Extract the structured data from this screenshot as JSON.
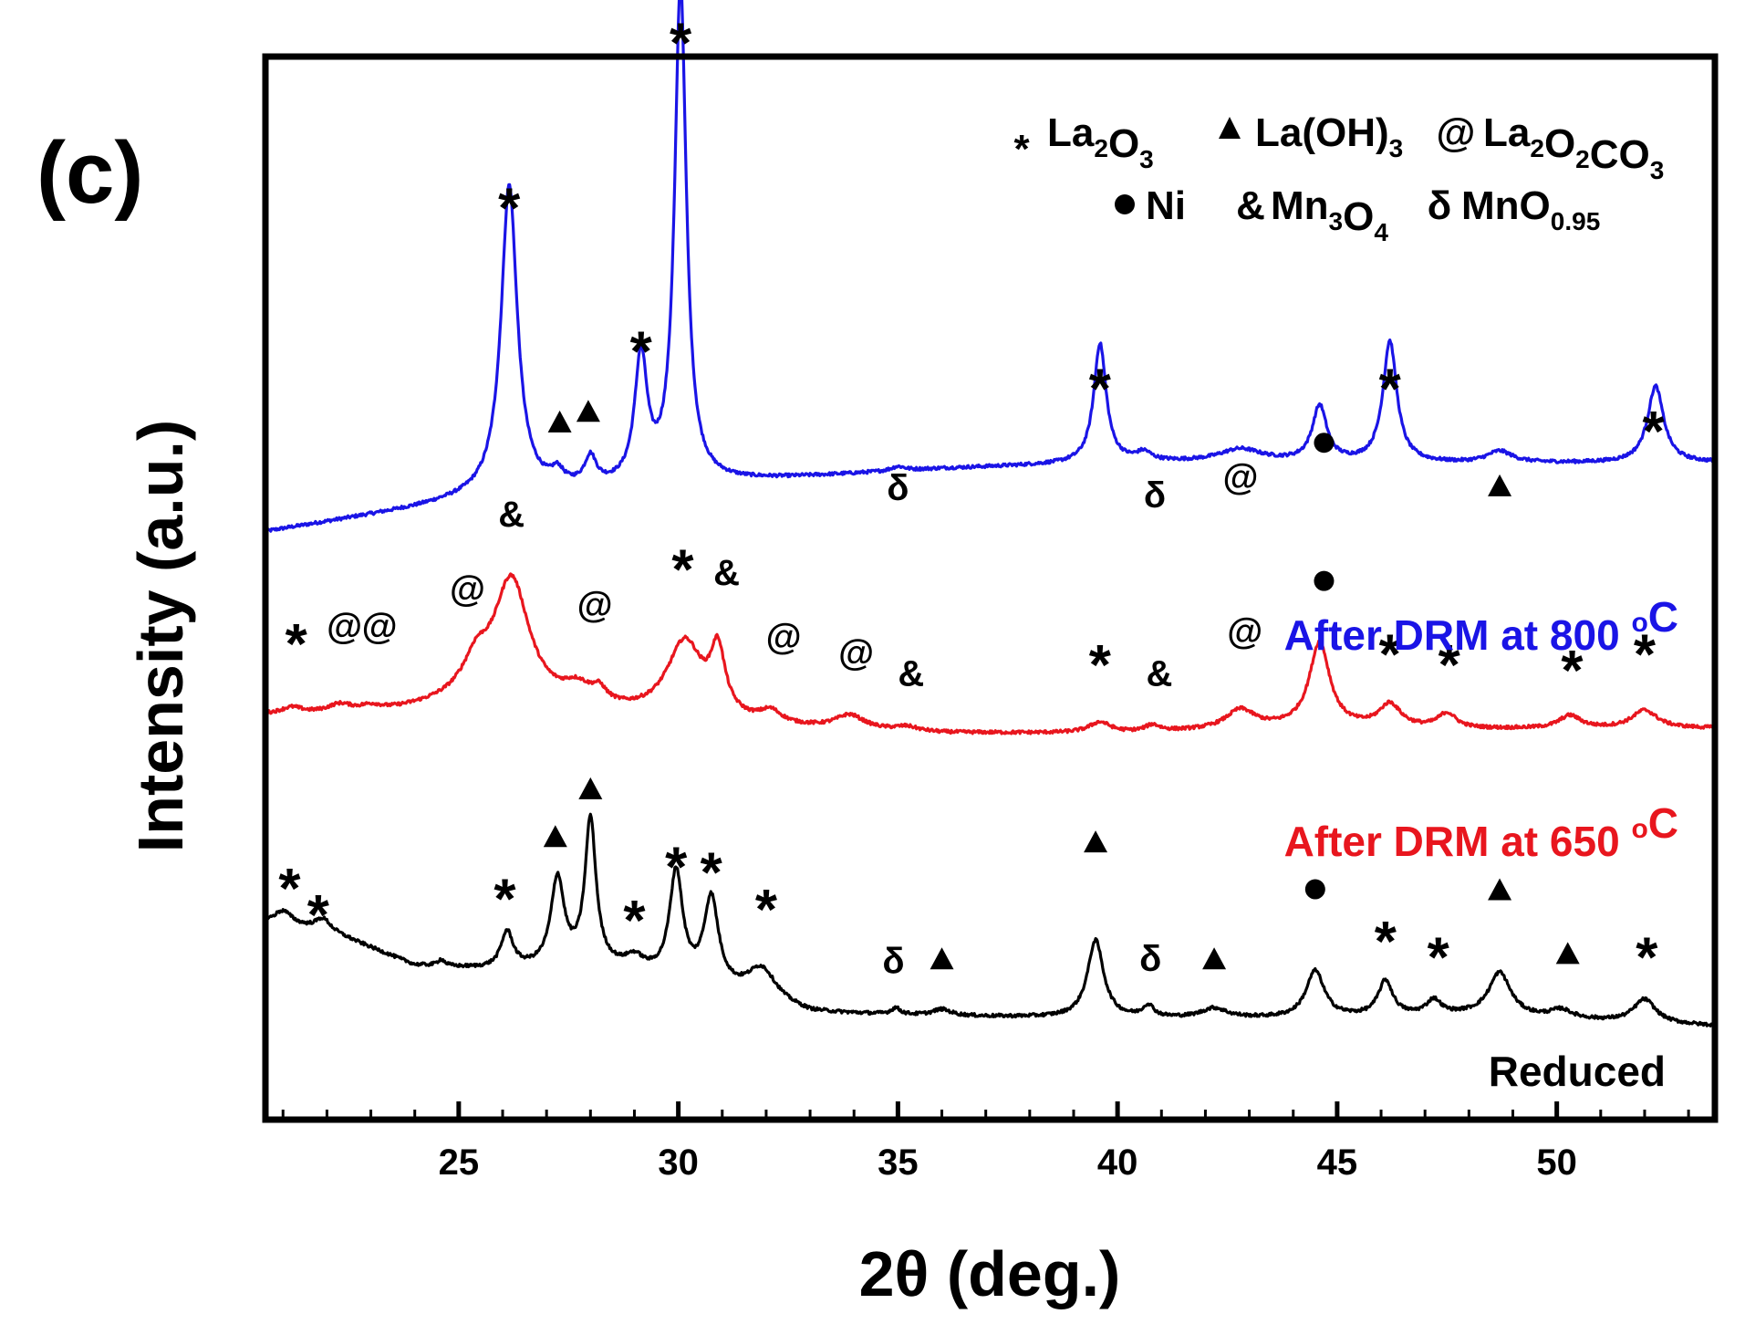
{
  "panel_label": "(c)",
  "chart_data": {
    "type": "line",
    "title": "",
    "xlabel": "2θ (deg.)",
    "ylabel": "Intensity (a.u.)",
    "xlim": [
      20.6,
      53.6
    ],
    "ylim": [
      0,
      1
    ],
    "xticks": [
      25,
      30,
      35,
      40,
      45,
      50
    ],
    "xtick_labels": [
      "25",
      "30",
      "35",
      "40",
      "45",
      "50"
    ],
    "grid": false,
    "legend": {
      "placement": "top-right",
      "entries": [
        {
          "symbol": "*",
          "label": "La2O3",
          "parts": [
            {
              "t": "La"
            },
            {
              "t": "2",
              "sub": true
            },
            {
              "t": "O"
            },
            {
              "t": "3",
              "sub": true
            }
          ]
        },
        {
          "symbol": "▲",
          "label": "La(OH)3",
          "parts": [
            {
              "t": "La(OH)"
            },
            {
              "t": "3",
              "sub": true
            }
          ]
        },
        {
          "symbol": "@",
          "label": "La2O2CO3",
          "parts": [
            {
              "t": "La"
            },
            {
              "t": "2",
              "sub": true
            },
            {
              "t": "O"
            },
            {
              "t": "2",
              "sub": true
            },
            {
              "t": "CO"
            },
            {
              "t": "3",
              "sub": true
            }
          ]
        },
        {
          "symbol": "●",
          "label": "Ni",
          "parts": [
            {
              "t": "Ni"
            }
          ]
        },
        {
          "symbol": "&",
          "label": "Mn3O4",
          "parts": [
            {
              "t": "Mn"
            },
            {
              "t": "3",
              "sub": true
            },
            {
              "t": "O"
            },
            {
              "t": "4",
              "sub": true
            }
          ]
        },
        {
          "symbol": "δ",
          "label": "MnO0.95",
          "parts": [
            {
              "t": "MnO"
            },
            {
              "t": "0.95",
              "sub": true
            }
          ]
        }
      ]
    },
    "series": [
      {
        "name": "After DRM at 800 °C",
        "label_parts": [
          {
            "t": "After DRM at 800 "
          },
          {
            "t": "o",
            "sup": true
          },
          {
            "t": "C"
          }
        ],
        "color": "#1a14e6",
        "baseline": [
          [
            20.6,
            0.553
          ],
          [
            24,
            0.575
          ],
          [
            26,
            0.59
          ],
          [
            28,
            0.592
          ],
          [
            32,
            0.602
          ],
          [
            36,
            0.612
          ],
          [
            40,
            0.618
          ],
          [
            44,
            0.618
          ],
          [
            48,
            0.617
          ],
          [
            53.6,
            0.618
          ]
        ],
        "peaks": [
          {
            "x": 26.15,
            "h": 0.288,
            "w": 0.22
          },
          {
            "x": 27.25,
            "h": 0.012,
            "w": 0.16
          },
          {
            "x": 28.0,
            "h": 0.026,
            "w": 0.16
          },
          {
            "x": 29.15,
            "h": 0.118,
            "w": 0.17
          },
          {
            "x": 30.05,
            "h": 0.468,
            "w": 0.16
          },
          {
            "x": 35.0,
            "h": 0.004,
            "w": 0.2
          },
          {
            "x": 39.6,
            "h": 0.112,
            "w": 0.17
          },
          {
            "x": 40.6,
            "h": 0.008,
            "w": 0.2
          },
          {
            "x": 42.8,
            "h": 0.012,
            "w": 0.6
          },
          {
            "x": 44.6,
            "h": 0.052,
            "w": 0.2
          },
          {
            "x": 46.2,
            "h": 0.114,
            "w": 0.19
          },
          {
            "x": 48.7,
            "h": 0.011,
            "w": 0.35
          },
          {
            "x": 52.25,
            "h": 0.072,
            "w": 0.22
          }
        ],
        "annotations": [
          {
            "sym": "*",
            "x": 26.15,
            "y": 0.865
          },
          {
            "sym": "▲",
            "x": 27.3,
            "y": 0.655
          },
          {
            "sym": "▲",
            "x": 27.95,
            "y": 0.665
          },
          {
            "sym": "*",
            "x": 29.15,
            "y": 0.73
          },
          {
            "sym": "*",
            "x": 30.05,
            "y": 1.02
          },
          {
            "sym": "δ",
            "x": 35.0,
            "y": 0.595
          },
          {
            "sym": "*",
            "x": 39.6,
            "y": 0.695
          },
          {
            "sym": "δ",
            "x": 40.85,
            "y": 0.588
          },
          {
            "sym": "@",
            "x": 42.8,
            "y": 0.605
          },
          {
            "sym": "●",
            "x": 44.7,
            "y": 0.635
          },
          {
            "sym": "*",
            "x": 46.2,
            "y": 0.695
          },
          {
            "sym": "▲",
            "x": 48.7,
            "y": 0.595
          },
          {
            "sym": "*",
            "x": 52.2,
            "y": 0.655
          }
        ]
      },
      {
        "name": "After DRM at 650 °C",
        "label_parts": [
          {
            "t": "After DRM at 650 "
          },
          {
            "t": "o",
            "sup": true
          },
          {
            "t": "C"
          }
        ],
        "color": "#e8161e",
        "baseline": [
          [
            20.6,
            0.38
          ],
          [
            23,
            0.38
          ],
          [
            25,
            0.39
          ],
          [
            28,
            0.382
          ],
          [
            32,
            0.368
          ],
          [
            36,
            0.363
          ],
          [
            40,
            0.363
          ],
          [
            44,
            0.368
          ],
          [
            48,
            0.367
          ],
          [
            53.6,
            0.368
          ]
        ],
        "peaks": [
          {
            "x": 21.2,
            "h": 0.006,
            "w": 0.3
          },
          {
            "x": 22.3,
            "h": 0.008,
            "w": 0.35
          },
          {
            "x": 23.0,
            "h": 0.006,
            "w": 0.3
          },
          {
            "x": 25.4,
            "h": 0.03,
            "w": 0.35
          },
          {
            "x": 26.2,
            "h": 0.118,
            "w": 0.5
          },
          {
            "x": 27.7,
            "h": 0.016,
            "w": 0.4
          },
          {
            "x": 28.2,
            "h": 0.012,
            "w": 0.2
          },
          {
            "x": 30.15,
            "h": 0.072,
            "w": 0.5
          },
          {
            "x": 30.9,
            "h": 0.058,
            "w": 0.2
          },
          {
            "x": 32.1,
            "h": 0.012,
            "w": 0.3
          },
          {
            "x": 33.9,
            "h": 0.013,
            "w": 0.4
          },
          {
            "x": 35.2,
            "h": 0.004,
            "w": 0.3
          },
          {
            "x": 39.6,
            "h": 0.01,
            "w": 0.3
          },
          {
            "x": 40.8,
            "h": 0.006,
            "w": 0.2
          },
          {
            "x": 42.8,
            "h": 0.018,
            "w": 0.4
          },
          {
            "x": 44.6,
            "h": 0.08,
            "w": 0.28
          },
          {
            "x": 46.2,
            "h": 0.022,
            "w": 0.3
          },
          {
            "x": 47.5,
            "h": 0.014,
            "w": 0.25
          },
          {
            "x": 50.3,
            "h": 0.012,
            "w": 0.3
          },
          {
            "x": 52.0,
            "h": 0.017,
            "w": 0.35
          }
        ],
        "annotations": [
          {
            "sym": "*",
            "x": 21.3,
            "y": 0.455
          },
          {
            "sym": "@",
            "x": 22.4,
            "y": 0.465
          },
          {
            "sym": "@",
            "x": 23.2,
            "y": 0.465
          },
          {
            "sym": "@",
            "x": 25.2,
            "y": 0.5
          },
          {
            "sym": "&",
            "x": 26.2,
            "y": 0.57
          },
          {
            "sym": "@",
            "x": 28.1,
            "y": 0.485
          },
          {
            "sym": "*",
            "x": 30.1,
            "y": 0.525
          },
          {
            "sym": "&",
            "x": 31.1,
            "y": 0.515
          },
          {
            "sym": "@",
            "x": 32.4,
            "y": 0.455
          },
          {
            "sym": "@",
            "x": 34.05,
            "y": 0.44
          },
          {
            "sym": "&",
            "x": 35.3,
            "y": 0.42
          },
          {
            "sym": "*",
            "x": 39.6,
            "y": 0.435
          },
          {
            "sym": "&",
            "x": 40.95,
            "y": 0.42
          },
          {
            "sym": "@",
            "x": 42.9,
            "y": 0.46
          },
          {
            "sym": "●",
            "x": 44.7,
            "y": 0.505
          },
          {
            "sym": "*",
            "x": 46.2,
            "y": 0.445
          },
          {
            "sym": "*",
            "x": 47.55,
            "y": 0.435
          },
          {
            "sym": "*",
            "x": 50.35,
            "y": 0.43
          },
          {
            "sym": "*",
            "x": 52.0,
            "y": 0.445
          }
        ]
      },
      {
        "name": "Reduced",
        "label_parts": [
          {
            "t": "Reduced"
          }
        ],
        "color": "#000000",
        "baseline": [
          [
            20.6,
            0.185
          ],
          [
            22,
            0.178
          ],
          [
            24,
            0.145
          ],
          [
            26,
            0.14
          ],
          [
            28,
            0.145
          ],
          [
            30,
            0.13
          ],
          [
            33,
            0.1
          ],
          [
            36,
            0.097
          ],
          [
            40,
            0.095
          ],
          [
            44,
            0.095
          ],
          [
            48,
            0.098
          ],
          [
            53.6,
            0.088
          ]
        ],
        "peaks": [
          {
            "x": 21.0,
            "h": 0.013,
            "w": 0.25
          },
          {
            "x": 21.9,
            "h": 0.01,
            "w": 0.2
          },
          {
            "x": 24.6,
            "h": 0.006,
            "w": 0.1
          },
          {
            "x": 26.1,
            "h": 0.035,
            "w": 0.17
          },
          {
            "x": 27.25,
            "h": 0.082,
            "w": 0.18
          },
          {
            "x": 28.0,
            "h": 0.135,
            "w": 0.15
          },
          {
            "x": 29.0,
            "h": 0.012,
            "w": 0.25
          },
          {
            "x": 29.95,
            "h": 0.1,
            "w": 0.18
          },
          {
            "x": 30.75,
            "h": 0.082,
            "w": 0.2
          },
          {
            "x": 31.9,
            "h": 0.03,
            "w": 0.4
          },
          {
            "x": 34.95,
            "h": 0.006,
            "w": 0.12
          },
          {
            "x": 36.0,
            "h": 0.006,
            "w": 0.25
          },
          {
            "x": 39.5,
            "h": 0.073,
            "w": 0.22
          },
          {
            "x": 40.7,
            "h": 0.011,
            "w": 0.15
          },
          {
            "x": 42.2,
            "h": 0.009,
            "w": 0.35
          },
          {
            "x": 44.5,
            "h": 0.044,
            "w": 0.25
          },
          {
            "x": 46.1,
            "h": 0.033,
            "w": 0.2
          },
          {
            "x": 47.2,
            "h": 0.014,
            "w": 0.2
          },
          {
            "x": 48.7,
            "h": 0.041,
            "w": 0.3
          },
          {
            "x": 50.1,
            "h": 0.008,
            "w": 0.3
          },
          {
            "x": 52.0,
            "h": 0.022,
            "w": 0.3
          }
        ],
        "annotations": [
          {
            "sym": "*",
            "x": 21.15,
            "y": 0.225
          },
          {
            "sym": "*",
            "x": 21.8,
            "y": 0.2
          },
          {
            "sym": "*",
            "x": 26.05,
            "y": 0.215
          },
          {
            "sym": "▲",
            "x": 27.2,
            "y": 0.265
          },
          {
            "sym": "▲",
            "x": 28.0,
            "y": 0.31
          },
          {
            "sym": "*",
            "x": 29.0,
            "y": 0.195
          },
          {
            "sym": "*",
            "x": 29.95,
            "y": 0.245
          },
          {
            "sym": "*",
            "x": 30.75,
            "y": 0.24
          },
          {
            "sym": "*",
            "x": 32.0,
            "y": 0.205
          },
          {
            "sym": "δ",
            "x": 34.9,
            "y": 0.15
          },
          {
            "sym": "▲",
            "x": 36.0,
            "y": 0.15
          },
          {
            "sym": "▲",
            "x": 39.5,
            "y": 0.26
          },
          {
            "sym": "δ",
            "x": 40.75,
            "y": 0.152
          },
          {
            "sym": "▲",
            "x": 42.2,
            "y": 0.15
          },
          {
            "sym": "●",
            "x": 44.5,
            "y": 0.215
          },
          {
            "sym": "*",
            "x": 46.1,
            "y": 0.175
          },
          {
            "sym": "*",
            "x": 47.3,
            "y": 0.16
          },
          {
            "sym": "▲",
            "x": 48.7,
            "y": 0.215
          },
          {
            "sym": "▲",
            "x": 50.25,
            "y": 0.155
          },
          {
            "sym": "*",
            "x": 52.05,
            "y": 0.16
          }
        ]
      }
    ]
  }
}
